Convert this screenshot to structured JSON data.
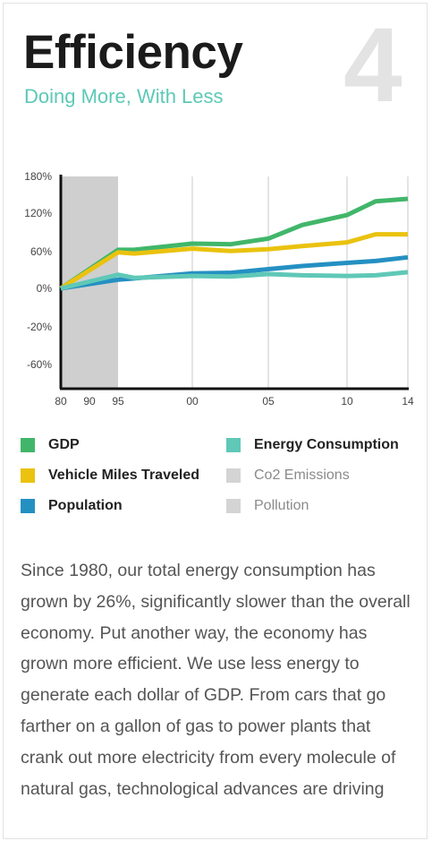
{
  "header": {
    "title": "Efficiency",
    "subtitle": "Doing More, With Less",
    "number": "4"
  },
  "colors": {
    "gdp": "#41b66a",
    "vmt": "#eac20f",
    "population": "#2490c2",
    "energy": "#5fc8b7",
    "co2": "#d4d4d4",
    "pollution": "#d4d4d4",
    "shade": "#cfcfcf"
  },
  "chart_data": {
    "type": "line",
    "x_tick_labels": [
      "80",
      "90",
      "95",
      "00",
      "05",
      "10",
      "14"
    ],
    "y_tick_labels": [
      "180%",
      "120%",
      "60%",
      "0%",
      "-20%",
      "-60%"
    ],
    "shaded_period": [
      "80",
      "95"
    ],
    "grid": "vertical",
    "x": [
      "80",
      "95",
      "97",
      "00",
      "02",
      "05",
      "07",
      "10",
      "12",
      "14"
    ],
    "series": [
      {
        "name": "GDP",
        "key": "gdp",
        "values": [
          0,
          62,
          62,
          72,
          71,
          80,
          102,
          118,
          140,
          144
        ]
      },
      {
        "name": "Vehicle Miles Traveled",
        "key": "vmt",
        "values": [
          0,
          58,
          56,
          64,
          60,
          63,
          68,
          74,
          87,
          87
        ]
      },
      {
        "name": "Population",
        "key": "population",
        "values": [
          0,
          14,
          16,
          24,
          25,
          31,
          36,
          41,
          44,
          50
        ]
      },
      {
        "name": "Energy Consumption",
        "key": "energy",
        "values": [
          0,
          22,
          17,
          20,
          19,
          23,
          21,
          20,
          21,
          26
        ]
      }
    ]
  },
  "legend": [
    {
      "label": "GDP",
      "color": "#41b66a",
      "muted": false
    },
    {
      "label": "Energy Consumption",
      "color": "#5fc8b7",
      "muted": false
    },
    {
      "label": "Vehicle Miles Traveled",
      "color": "#eac20f",
      "muted": false
    },
    {
      "label": "Co2 Emissions",
      "color": "#d4d4d4",
      "muted": true
    },
    {
      "label": "Population",
      "color": "#2490c2",
      "muted": false
    },
    {
      "label": "Pollution",
      "color": "#d4d4d4",
      "muted": true
    }
  ],
  "body_text": "Since 1980, our total energy consumption has grown by 26%, significantly slower than the overall economy. Put another way, the economy has grown more efficient. We use less energy to generate each dollar of GDP. From cars that go farther on a gallon of gas to power plants that crank out more electricity from every molecule of natural gas, technological advances are driving"
}
